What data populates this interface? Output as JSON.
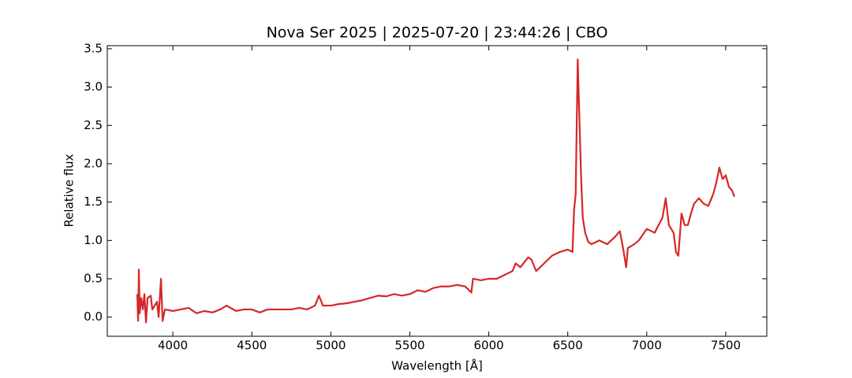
{
  "chart_data": {
    "type": "line",
    "title": "Nova Ser 2025 | 2025-07-20 | 23:44:26 | CBO",
    "x_label": "Wavelength [Å]",
    "y_label": "Relative flux",
    "xlim": [
      3585,
      7760
    ],
    "ylim": [
      -0.25,
      3.54
    ],
    "xticks": [
      4000,
      4500,
      5000,
      5500,
      6000,
      6500,
      7000,
      7500
    ],
    "yticks": [
      {
        "value": 0,
        "label": "0.0"
      },
      {
        "value": 0.5,
        "label": "0.5"
      },
      {
        "value": 1,
        "label": "1.0"
      },
      {
        "value": 1.5,
        "label": "1.5"
      },
      {
        "value": 2,
        "label": "2.0"
      },
      {
        "value": 2.5,
        "label": "2.5"
      },
      {
        "value": 3,
        "label": "3.0"
      },
      {
        "value": 3.5,
        "label": "3.5"
      }
    ],
    "grid": false,
    "series": [
      {
        "color": "#d62728",
        "x": [
          3775,
          3780,
          3785,
          3790,
          3800,
          3810,
          3820,
          3830,
          3840,
          3860,
          3870,
          3900,
          3910,
          3925,
          3935,
          3950,
          4000,
          4050,
          4100,
          4150,
          4200,
          4250,
          4300,
          4340,
          4400,
          4450,
          4500,
          4550,
          4600,
          4650,
          4700,
          4750,
          4800,
          4850,
          4900,
          4925,
          4950,
          5000,
          5050,
          5100,
          5150,
          5200,
          5250,
          5300,
          5350,
          5400,
          5450,
          5500,
          5550,
          5600,
          5650,
          5700,
          5750,
          5800,
          5850,
          5890,
          5900,
          5950,
          6000,
          6050,
          6100,
          6150,
          6170,
          6200,
          6250,
          6270,
          6300,
          6350,
          6400,
          6450,
          6500,
          6530,
          6540,
          6550,
          6563,
          6575,
          6585,
          6595,
          6610,
          6630,
          6650,
          6700,
          6750,
          6800,
          6830,
          6850,
          6870,
          6880,
          6920,
          6950,
          7000,
          7050,
          7100,
          7120,
          7140,
          7170,
          7185,
          7200,
          7220,
          7240,
          7260,
          7280,
          7300,
          7330,
          7360,
          7390,
          7420,
          7440,
          7460,
          7480,
          7500,
          7520,
          7540,
          7555
        ],
        "values": [
          0.3,
          -0.05,
          0.62,
          0.05,
          0.25,
          0.1,
          0.3,
          -0.07,
          0.25,
          0.28,
          0.1,
          0.2,
          0.0,
          0.5,
          -0.05,
          0.1,
          0.08,
          0.1,
          0.12,
          0.05,
          0.08,
          0.06,
          0.1,
          0.15,
          0.08,
          0.1,
          0.1,
          0.06,
          0.1,
          0.1,
          0.1,
          0.1,
          0.12,
          0.1,
          0.15,
          0.28,
          0.15,
          0.15,
          0.17,
          0.18,
          0.2,
          0.22,
          0.25,
          0.28,
          0.27,
          0.3,
          0.28,
          0.3,
          0.35,
          0.33,
          0.38,
          0.4,
          0.4,
          0.42,
          0.4,
          0.32,
          0.5,
          0.48,
          0.5,
          0.5,
          0.55,
          0.6,
          0.7,
          0.65,
          0.78,
          0.75,
          0.6,
          0.7,
          0.8,
          0.85,
          0.88,
          0.85,
          1.4,
          1.6,
          3.36,
          2.5,
          1.8,
          1.3,
          1.1,
          0.98,
          0.95,
          1.0,
          0.95,
          1.05,
          1.12,
          0.9,
          0.65,
          0.9,
          0.95,
          1.0,
          1.15,
          1.1,
          1.3,
          1.55,
          1.2,
          1.1,
          0.85,
          0.8,
          1.35,
          1.2,
          1.2,
          1.35,
          1.48,
          1.55,
          1.48,
          1.45,
          1.6,
          1.75,
          1.95,
          1.8,
          1.85,
          1.7,
          1.65,
          1.57
        ]
      }
    ]
  }
}
